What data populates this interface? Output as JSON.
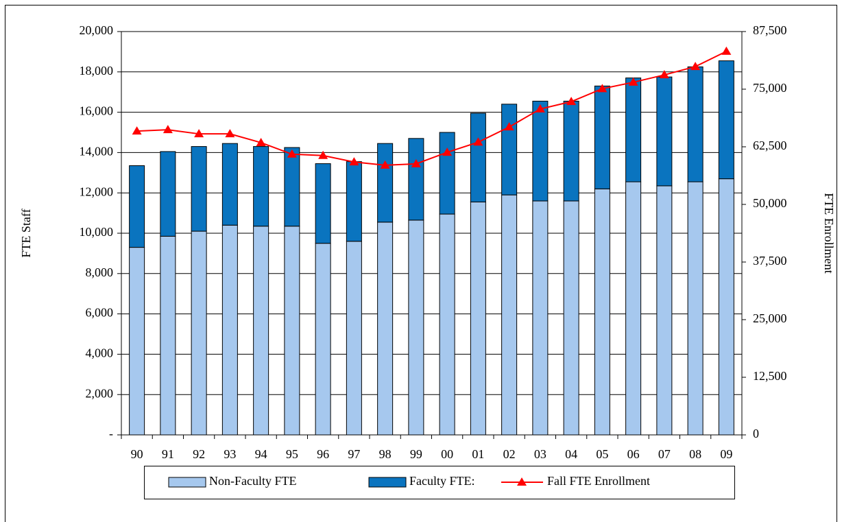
{
  "chart_data": {
    "type": "bar",
    "stacked": true,
    "categories": [
      "90",
      "91",
      "92",
      "93",
      "94",
      "95",
      "96",
      "97",
      "98",
      "99",
      "00",
      "01",
      "02",
      "03",
      "04",
      "05",
      "06",
      "07",
      "08",
      "09"
    ],
    "series": [
      {
        "name": "Non-Faculty FTE",
        "type": "bar",
        "color": "#a6c8ee",
        "values": [
          9300,
          9850,
          10100,
          10400,
          10350,
          10350,
          9500,
          9600,
          10550,
          10650,
          10950,
          11550,
          11900,
          11600,
          11600,
          12200,
          12550,
          12350,
          12550,
          12700
        ]
      },
      {
        "name": "Faculty FTE:",
        "type": "bar",
        "color": "#0a74bf",
        "values": [
          4050,
          4200,
          4200,
          4050,
          3950,
          3900,
          3950,
          3950,
          3900,
          4050,
          4050,
          4400,
          4500,
          4950,
          4950,
          5100,
          5150,
          5400,
          5700,
          5850
        ]
      },
      {
        "name": "Fall FTE Enrollment",
        "type": "line",
        "axis": "y2",
        "color": "#ff0000",
        "values": [
          65900,
          66200,
          65300,
          65300,
          63400,
          60900,
          60600,
          59200,
          58500,
          58800,
          61300,
          63500,
          66800,
          70700,
          72300,
          75100,
          76500,
          78100,
          79900,
          83200
        ]
      }
    ],
    "ylabel": "FTE Staff",
    "y2label": "FTE Enrollment",
    "ylim": [
      0,
      20000
    ],
    "yticks": [
      {
        "value": 0,
        "label": "-"
      },
      {
        "value": 2000,
        "label": "2,000"
      },
      {
        "value": 4000,
        "label": "4,000"
      },
      {
        "value": 6000,
        "label": "6,000"
      },
      {
        "value": 8000,
        "label": "8,000"
      },
      {
        "value": 10000,
        "label": "10,000"
      },
      {
        "value": 12000,
        "label": "12,000"
      },
      {
        "value": 14000,
        "label": "14,000"
      },
      {
        "value": 16000,
        "label": "16,000"
      },
      {
        "value": 18000,
        "label": "18,000"
      },
      {
        "value": 20000,
        "label": "20,000"
      }
    ],
    "y2lim": [
      0,
      87500
    ],
    "y2ticks": [
      0,
      {
        "value": 12500,
        "label": "12,500"
      },
      {
        "value": 25000,
        "label": "25,000"
      },
      {
        "value": 37500,
        "label": "37,500"
      },
      {
        "value": 50000,
        "label": "50,000"
      },
      {
        "value": 62500,
        "label": "62,500"
      },
      {
        "value": 75000,
        "label": "75,000"
      },
      {
        "value": 87500,
        "label": "87,500"
      }
    ],
    "grid": true,
    "legend": "bottom"
  }
}
